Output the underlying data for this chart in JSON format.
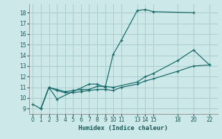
{
  "xlabel": "Humidex (Indice chaleur)",
  "background_color": "#cce8e8",
  "grid_color": "#aacccc",
  "line_color": "#1a6b6b",
  "ylim": [
    8.5,
    18.8
  ],
  "xlim": [
    -0.5,
    23.0
  ],
  "yticks": [
    9,
    10,
    11,
    12,
    13,
    14,
    15,
    16,
    17,
    18
  ],
  "xticks": [
    0,
    1,
    2,
    3,
    4,
    5,
    6,
    7,
    8,
    9,
    10,
    11,
    13,
    14,
    15,
    18,
    20,
    22
  ],
  "series1_x": [
    0,
    1,
    2,
    3,
    7,
    8,
    9,
    10,
    11,
    13,
    14,
    15,
    20
  ],
  "series1_y": [
    9.4,
    9.0,
    11.0,
    9.9,
    11.3,
    11.3,
    11.0,
    14.1,
    15.4,
    18.2,
    18.3,
    18.1,
    18.0
  ],
  "series2_x": [
    1,
    2,
    3,
    4,
    5,
    6,
    7,
    8,
    9,
    10,
    13,
    14,
    15,
    18,
    20,
    22
  ],
  "series2_y": [
    9.0,
    11.0,
    10.8,
    10.6,
    10.7,
    10.8,
    10.8,
    11.1,
    11.1,
    11.0,
    11.5,
    12.0,
    12.3,
    13.5,
    14.5,
    13.1
  ],
  "series3_x": [
    1,
    2,
    3,
    4,
    5,
    6,
    7,
    8,
    9,
    10,
    11,
    13,
    14,
    15,
    18,
    20,
    22
  ],
  "series3_y": [
    9.0,
    11.0,
    10.7,
    10.5,
    10.5,
    10.6,
    10.7,
    10.8,
    10.8,
    10.7,
    11.0,
    11.3,
    11.6,
    11.8,
    12.5,
    13.0,
    13.1
  ]
}
